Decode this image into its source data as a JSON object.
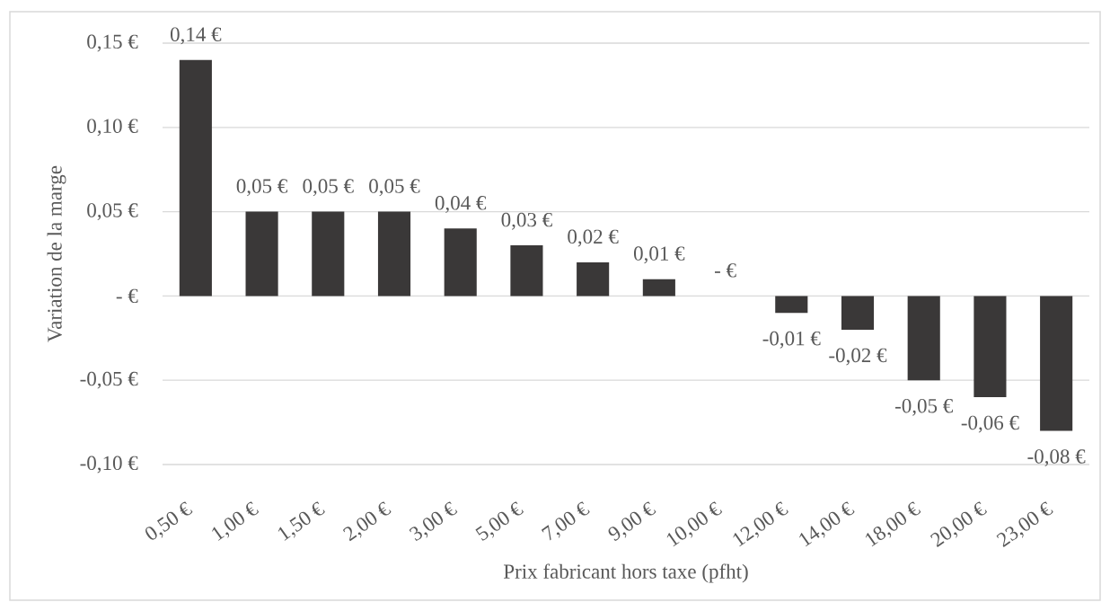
{
  "chart_data": {
    "type": "bar",
    "xlabel": "Prix fabricant hors taxe (pfht)",
    "ylabel": "Variation de la marge",
    "categories": [
      "0,50 €",
      "1,00 €",
      "1,50 €",
      "2,00 €",
      "3,00 €",
      "5,00 €",
      "7,00 €",
      "9,00 €",
      "10,00 €",
      "12,00 €",
      "14,00 €",
      "18,00 €",
      "20,00 €",
      "23,00 €"
    ],
    "values": [
      0.14,
      0.05,
      0.05,
      0.05,
      0.04,
      0.03,
      0.02,
      0.01,
      0,
      -0.01,
      -0.02,
      -0.05,
      -0.06,
      -0.08
    ],
    "value_labels": [
      "0,14 €",
      "0,05 €",
      "0,05 €",
      "0,05 €",
      "0,04 €",
      "0,03 €",
      "0,02 €",
      "0,01 €",
      "- €",
      "-0,01 €",
      "-0,02 €",
      "-0,05 €",
      "-0,06 €",
      "-0,08 €"
    ],
    "color": "#3a3838",
    "ylim": [
      -0.1,
      0.15
    ],
    "yticks": [
      {
        "value": -0.1,
        "label": "-0,10 €"
      },
      {
        "value": -0.05,
        "label": "-0,05 €"
      },
      {
        "value": 0,
        "label": "- €"
      },
      {
        "value": 0.05,
        "label": "0,05 €"
      },
      {
        "value": 0.1,
        "label": "0,10 €"
      },
      {
        "value": 0.15,
        "label": "0,15 €"
      }
    ],
    "grid": "y"
  }
}
